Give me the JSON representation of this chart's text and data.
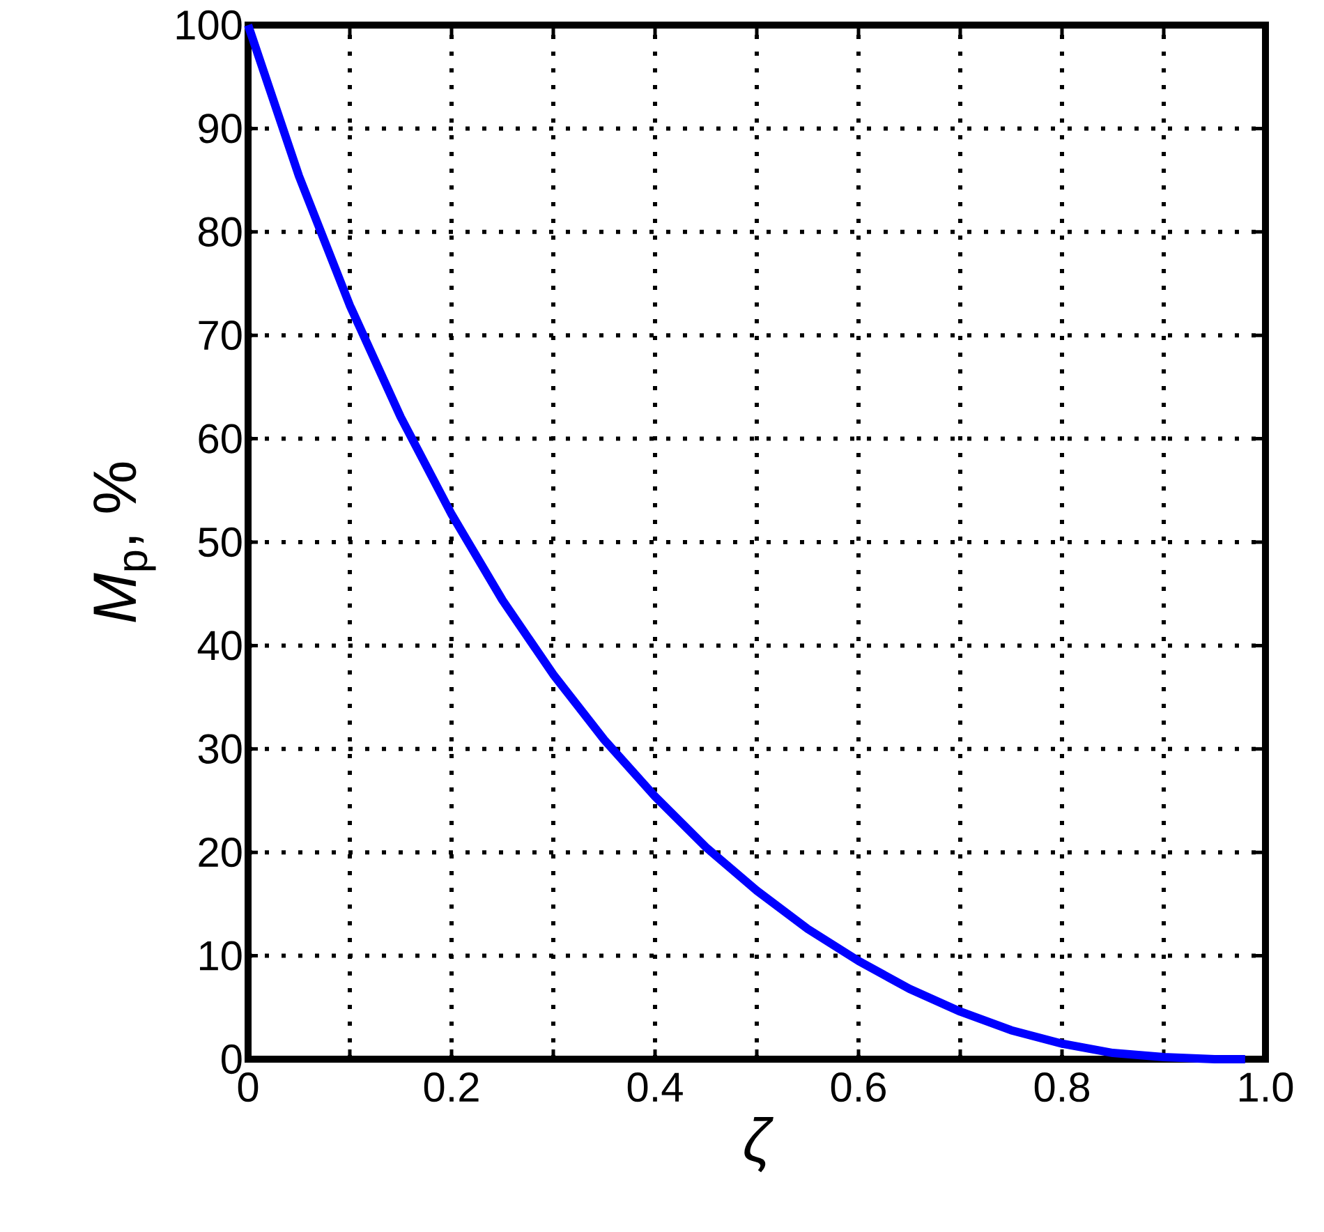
{
  "chart_data": {
    "type": "line",
    "xlabel": "ζ",
    "ylabel": "*M*$_{p}$, %",
    "x": [
      0,
      0.05,
      0.1,
      0.15,
      0.2,
      0.25,
      0.3,
      0.35,
      0.4,
      0.45,
      0.5,
      0.55,
      0.6,
      0.65,
      0.7,
      0.75,
      0.8,
      0.85,
      0.9,
      0.95,
      0.98
    ],
    "series": [
      {
        "color": "#0000ff",
        "values": [
          100,
          85.4,
          72.9,
          62.1,
          52.7,
          44.4,
          37.2,
          30.9,
          25.4,
          20.5,
          16.3,
          12.6,
          9.5,
          6.8,
          4.6,
          2.8,
          1.5,
          0.6,
          0.2,
          0,
          0
        ]
      }
    ],
    "xlim": [
      0,
      1
    ],
    "ylim": [
      0,
      100
    ],
    "xticks": [
      0,
      {
        "value": 0.1,
        "label": null
      },
      0.2,
      {
        "value": 0.3,
        "label": null
      },
      0.4,
      {
        "value": 0.5,
        "label": null
      },
      0.6,
      {
        "value": 0.7,
        "label": null
      },
      0.8,
      {
        "value": 0.9,
        "label": null
      },
      {
        "value": 1,
        "label": "1.0"
      }
    ],
    "yticks": [
      0,
      10,
      20,
      30,
      40,
      50,
      60,
      70,
      80,
      90,
      100
    ],
    "grid": true,
    "marker": "none",
    "line_style": "solid"
  }
}
